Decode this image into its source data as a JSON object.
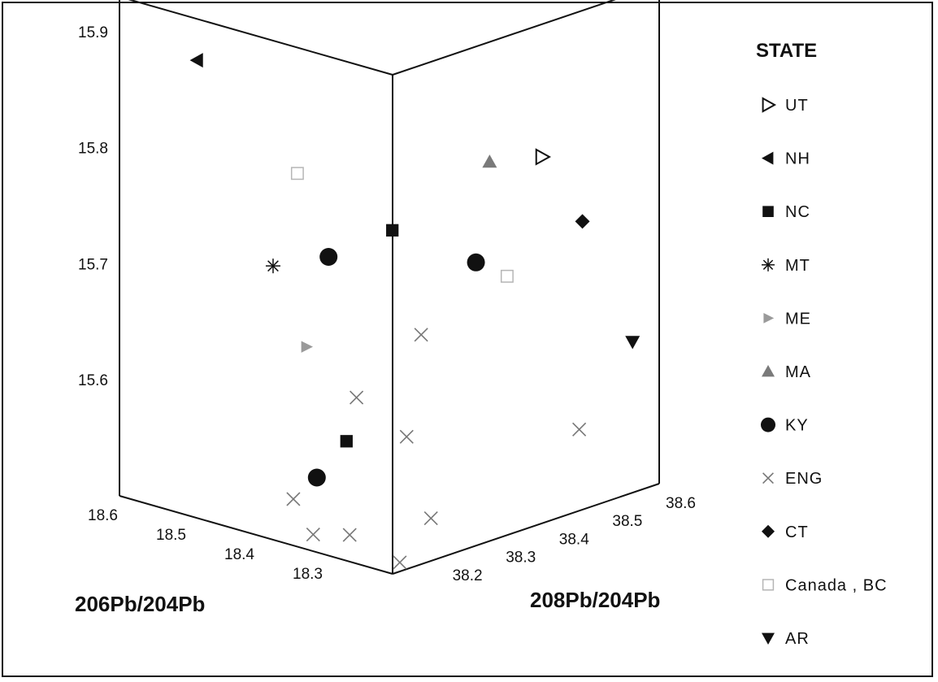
{
  "chart_data": {
    "type": "scatter",
    "projection": "3d",
    "z_axis": {
      "label": "",
      "ticks": [
        "15.9",
        "15.8",
        "15.7",
        "15.6"
      ],
      "range": [
        15.5,
        15.93
      ]
    },
    "x_axis": {
      "label": "206Pb/204Pb",
      "ticks": [
        "18.6",
        "18.5",
        "18.4",
        "18.3"
      ],
      "range": [
        18.2,
        18.6
      ]
    },
    "y_axis": {
      "label": "208Pb/204Pb",
      "ticks": [
        "38.2",
        "38.3",
        "38.4",
        "38.5",
        "38.6"
      ],
      "range": [
        38.1,
        38.6
      ]
    },
    "legend": {
      "title": "STATE",
      "position": "right",
      "entries": [
        {
          "label": "UT",
          "marker": "triangle-right-open",
          "color": "#111111"
        },
        {
          "label": "NH",
          "marker": "triangle-left",
          "color": "#111111"
        },
        {
          "label": "NC",
          "marker": "square",
          "color": "#111111"
        },
        {
          "label": "MT",
          "marker": "asterisk",
          "color": "#111111"
        },
        {
          "label": "ME",
          "marker": "triangle-right",
          "color": "#9a9a9a"
        },
        {
          "label": "MA",
          "marker": "triangle-up",
          "color": "#7a7a7a"
        },
        {
          "label": "KY",
          "marker": "circle",
          "color": "#111111"
        },
        {
          "label": "ENG",
          "marker": "x",
          "color": "#777777"
        },
        {
          "label": "CT",
          "marker": "diamond",
          "color": "#111111"
        },
        {
          "label": "Canada , BC",
          "marker": "square-open",
          "color": "#b5b5b5"
        },
        {
          "label": "AR",
          "marker": "triangle-down",
          "color": "#111111"
        }
      ]
    },
    "series": [
      {
        "name": "UT",
        "points": [
          [
            18.27,
            38.47,
            15.79
          ]
        ]
      },
      {
        "name": "NH",
        "points": [
          [
            18.58,
            38.22,
            15.86
          ]
        ]
      },
      {
        "name": "NC",
        "points": [
          [
            18.38,
            38.33,
            15.73
          ],
          [
            18.33,
            38.18,
            15.58
          ]
        ]
      },
      {
        "name": "MT",
        "points": [
          [
            18.5,
            38.26,
            15.69
          ]
        ]
      },
      {
        "name": "ME",
        "points": [
          [
            18.42,
            38.22,
            15.64
          ]
        ]
      },
      {
        "name": "MA",
        "points": [
          [
            18.3,
            38.41,
            15.79
          ]
        ]
      },
      {
        "name": "KY",
        "points": [
          [
            18.45,
            38.3,
            15.7
          ],
          [
            18.32,
            38.41,
            15.7
          ],
          [
            18.35,
            38.15,
            15.55
          ]
        ]
      },
      {
        "name": "ENG",
        "points": [
          [
            18.33,
            38.32,
            15.65
          ],
          [
            18.37,
            38.25,
            15.6
          ],
          [
            18.32,
            38.28,
            15.57
          ],
          [
            18.2,
            38.45,
            15.57
          ],
          [
            18.4,
            38.17,
            15.52
          ],
          [
            18.41,
            38.22,
            15.48
          ],
          [
            18.38,
            38.25,
            15.48
          ],
          [
            18.3,
            38.3,
            15.5
          ],
          [
            18.33,
            38.28,
            15.46
          ]
        ]
      },
      {
        "name": "CT",
        "points": [
          [
            18.25,
            38.52,
            15.73
          ]
        ]
      },
      {
        "name": "Canada , BC",
        "points": [
          [
            18.48,
            38.28,
            15.77
          ],
          [
            18.29,
            38.43,
            15.69
          ]
        ]
      },
      {
        "name": "AR",
        "points": [
          [
            18.2,
            38.55,
            15.63
          ]
        ]
      }
    ]
  }
}
